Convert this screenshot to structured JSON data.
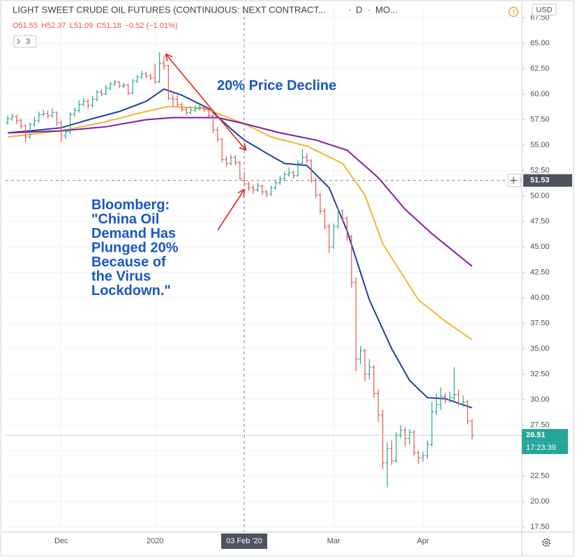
{
  "chart_data": {
    "type": "ohlc",
    "title": "LIGHT SWEET CRUDE OIL FUTURES (CONTINUOUS: NEXT CONTRACT...",
    "interval": "D",
    "source": "MO...",
    "legend": [
      "O51.55",
      "H52.37",
      "L51.09",
      "C51.18",
      "−0.52 (−1.01%)"
    ],
    "indicators_count": "3",
    "currency": "USD",
    "categories": [
      null,
      null,
      null,
      null,
      null,
      null,
      null,
      null,
      null,
      null,
      null,
      null,
      "Dec",
      null,
      null,
      null,
      null,
      null,
      null,
      null,
      null,
      null,
      null,
      null,
      null,
      null,
      null,
      null,
      null,
      null,
      null,
      null,
      null,
      "2020",
      null,
      null,
      null,
      null,
      null,
      null,
      null,
      null,
      null,
      null,
      null,
      null,
      null,
      null,
      null,
      null,
      null,
      null,
      null,
      null,
      null,
      null,
      null,
      null,
      null,
      null,
      null,
      null,
      null,
      null,
      null,
      null,
      null,
      null,
      null,
      null,
      null,
      null,
      null,
      "Mar",
      null,
      null,
      null,
      null,
      null,
      null,
      null,
      null,
      null,
      null,
      null,
      null,
      null,
      null,
      null,
      null,
      null,
      null,
      null,
      "Apr",
      null,
      null,
      null,
      null,
      null,
      null,
      null,
      null,
      null,
      null,
      null
    ],
    "open": [
      57.2,
      57.6,
      57.8,
      57.4,
      56.9,
      55.8,
      57.0,
      57.4,
      58.0,
      58.1,
      57.9,
      58.2,
      57.2,
      55.9,
      56.3,
      58.0,
      58.4,
      59.0,
      59.3,
      58.9,
      59.5,
      60.2,
      60.0,
      60.6,
      61.0,
      61.2,
      60.8,
      60.9,
      60.1,
      61.3,
      61.7,
      62.0,
      61.8,
      61.6,
      61.2,
      63.0,
      62.8,
      59.6,
      59.5,
      59.0,
      58.5,
      58.2,
      58.4,
      58.6,
      58.7,
      58.5,
      57.9,
      56.5,
      55.6,
      53.6,
      53.2,
      53.8,
      53.3,
      51.55,
      51.18,
      50.8,
      50.6,
      51.0,
      50.4,
      50.2,
      50.8,
      51.3,
      51.7,
      52.1,
      52.3,
      52.0,
      53.2,
      53.8,
      53.5,
      51.5,
      50.1,
      48.5,
      47.0,
      45.0,
      47.0,
      48.5,
      47.8,
      46.0,
      41.5,
      34.0,
      34.8,
      32.5,
      33.2,
      30.6,
      28.5,
      23.8,
      25.2,
      24.0,
      26.5,
      27.0,
      26.2,
      26.8,
      24.8,
      24.3,
      24.5,
      25.6,
      28.8,
      29.5,
      30.3,
      30.0,
      30.2,
      30.5,
      29.6,
      29.8,
      27.9
    ],
    "high": [
      57.9,
      58.1,
      58.0,
      57.6,
      57.0,
      57.2,
      57.8,
      58.3,
      58.5,
      58.4,
      58.6,
      58.3,
      57.4,
      56.6,
      58.2,
      58.7,
      59.4,
      59.6,
      59.5,
      59.8,
      60.4,
      60.5,
      60.9,
      61.2,
      61.4,
      61.3,
      61.1,
      61.0,
      61.5,
      61.9,
      62.3,
      62.2,
      62.0,
      63.0,
      64.1,
      63.8,
      62.9,
      60.0,
      59.9,
      59.2,
      58.7,
      58.8,
      58.9,
      59.0,
      58.9,
      58.6,
      58.0,
      56.8,
      55.7,
      53.9,
      54.1,
      54.0,
      53.4,
      52.37,
      51.4,
      51.1,
      51.3,
      51.1,
      50.6,
      51.0,
      51.6,
      52.0,
      52.4,
      52.8,
      52.5,
      53.5,
      54.6,
      54.2,
      53.6,
      51.8,
      50.3,
      48.8,
      47.3,
      47.3,
      48.8,
      48.7,
      48.0,
      46.2,
      42.0,
      35.3,
      35.0,
      34.0,
      33.4,
      31.0,
      29.0,
      25.8,
      26.0,
      26.8,
      27.5,
      27.3,
      27.1,
      27.0,
      25.0,
      24.9,
      26.0,
      29.8,
      30.6,
      31.2,
      30.7,
      30.8,
      33.2,
      31.0,
      30.4,
      30.0,
      28.1
    ],
    "low": [
      57.0,
      57.4,
      57.1,
      56.6,
      55.3,
      55.6,
      56.8,
      57.2,
      57.8,
      57.6,
      57.7,
      56.9,
      55.3,
      55.6,
      56.1,
      57.8,
      58.2,
      58.8,
      58.6,
      58.7,
      59.3,
      59.8,
      59.9,
      60.4,
      60.8,
      60.6,
      60.6,
      59.9,
      60.0,
      61.1,
      61.5,
      61.6,
      61.4,
      61.0,
      61.1,
      62.4,
      59.4,
      58.8,
      58.8,
      58.3,
      57.9,
      58.0,
      58.2,
      58.4,
      58.2,
      57.6,
      56.2,
      55.3,
      53.3,
      52.9,
      53.0,
      53.0,
      51.6,
      51.09,
      50.5,
      50.2,
      50.4,
      50.1,
      49.9,
      50.0,
      50.6,
      51.1,
      51.5,
      51.9,
      51.7,
      51.9,
      53.1,
      53.2,
      51.3,
      49.8,
      48.2,
      46.7,
      44.4,
      44.8,
      46.8,
      47.5,
      45.6,
      41.0,
      32.8,
      33.5,
      31.8,
      32.0,
      30.2,
      27.8,
      23.2,
      21.4,
      23.6,
      23.8,
      26.2,
      25.4,
      25.6,
      24.5,
      23.7,
      23.9,
      24.2,
      25.4,
      28.5,
      29.0,
      29.6,
      29.7,
      29.9,
      29.4,
      29.3,
      27.6,
      26.1
    ],
    "close": [
      57.6,
      57.8,
      57.4,
      56.9,
      55.8,
      57.0,
      57.4,
      58.0,
      58.1,
      57.9,
      58.2,
      57.2,
      55.9,
      56.3,
      58.0,
      58.4,
      59.0,
      59.3,
      58.9,
      59.5,
      60.2,
      60.0,
      60.6,
      61.0,
      61.2,
      60.8,
      60.9,
      60.1,
      61.3,
      61.7,
      62.0,
      61.8,
      61.6,
      61.2,
      63.0,
      62.8,
      59.6,
      59.5,
      59.0,
      58.5,
      58.2,
      58.4,
      58.6,
      58.7,
      58.5,
      57.9,
      56.5,
      55.6,
      53.6,
      53.2,
      53.8,
      53.3,
      51.7,
      51.18,
      50.8,
      50.6,
      51.0,
      50.4,
      50.2,
      50.8,
      51.3,
      51.7,
      52.1,
      52.3,
      52.0,
      53.2,
      53.8,
      53.5,
      51.5,
      50.1,
      48.5,
      47.0,
      45.0,
      47.0,
      48.5,
      47.8,
      46.0,
      41.5,
      34.0,
      34.8,
      32.5,
      33.2,
      30.6,
      28.5,
      23.8,
      25.2,
      24.0,
      26.5,
      27.0,
      26.2,
      26.8,
      24.8,
      24.3,
      24.5,
      25.6,
      28.8,
      29.5,
      30.3,
      30.0,
      30.2,
      30.5,
      29.6,
      29.8,
      27.9,
      26.51
    ],
    "up_color": "#26a69a",
    "down_color": "#ef5350",
    "ylim": [
      17.0,
      68.7
    ],
    "yticks": [
      {
        "value": 17.5,
        "label": "17.50"
      },
      {
        "value": 20,
        "label": "20.00"
      },
      {
        "value": 22.5,
        "label": "22.50"
      },
      {
        "value": 25,
        "label": "25.00"
      },
      {
        "value": 27.5,
        "label": "27.50"
      },
      {
        "value": 30,
        "label": "30.00"
      },
      {
        "value": 32.5,
        "label": "32.50"
      },
      {
        "value": 35,
        "label": "35.00"
      },
      {
        "value": 37.5,
        "label": "37.50"
      },
      {
        "value": 40,
        "label": "40.00"
      },
      {
        "value": 42.5,
        "label": "42.50"
      },
      {
        "value": 45,
        "label": "45.00"
      },
      {
        "value": 47.5,
        "label": "47.50"
      },
      {
        "value": 50,
        "label": "50.00"
      },
      {
        "value": 52.5,
        "label": "52.50"
      },
      {
        "value": 55,
        "label": "55.00"
      },
      {
        "value": 57.5,
        "label": "57.50"
      },
      {
        "value": 60,
        "label": "60.00"
      },
      {
        "value": 62.5,
        "label": "62.50"
      },
      {
        "value": 65,
        "label": "65.00"
      },
      {
        "value": 67.5,
        "label": "67.50"
      }
    ],
    "grid": true,
    "moving_averages": [
      {
        "color": "#1e3f9e",
        "x": [
          0,
          5,
          12,
          19,
          25,
          31,
          35,
          39,
          45,
          50,
          53,
          58,
          62,
          67,
          72,
          76,
          81,
          86,
          90,
          94,
          98,
          104
        ],
        "values": [
          56.2,
          56.4,
          56.7,
          57.6,
          58.3,
          59.3,
          60.5,
          59.9,
          58.6,
          56.6,
          55.5,
          54.2,
          53.2,
          53.0,
          50.8,
          46.6,
          39.8,
          35.0,
          31.9,
          30.2,
          30.1,
          29.2
        ]
      },
      {
        "color": "#f5b52e",
        "x": [
          0,
          12,
          22,
          30,
          36,
          44,
          53,
          59,
          67,
          75,
          80,
          84,
          92,
          98,
          104
        ],
        "values": [
          55.8,
          56.4,
          57.3,
          58.2,
          58.8,
          58.6,
          57.1,
          55.8,
          54.9,
          53.2,
          50.1,
          45.3,
          39.8,
          37.7,
          35.9
        ]
      },
      {
        "color": "#7b1fa2",
        "x": [
          0,
          12,
          22,
          31,
          37,
          47,
          53,
          61,
          69,
          76,
          83,
          89,
          95,
          104
        ],
        "values": [
          56.2,
          56.4,
          56.8,
          57.5,
          57.7,
          57.7,
          57.1,
          56.2,
          55.5,
          54.5,
          51.8,
          48.7,
          46.3,
          43.1
        ]
      }
    ],
    "crosshair": {
      "x_label": "03 Feb '20",
      "value": 51.53
    },
    "countdown": "17:23:39",
    "annotations": {
      "headline": "20% Price Decline",
      "quote": [
        "Bloomberg:",
        "\"China Oil",
        "Demand Has",
        "Plunged 20%",
        "Because of",
        "the Virus",
        "Lockdown.\""
      ]
    }
  }
}
